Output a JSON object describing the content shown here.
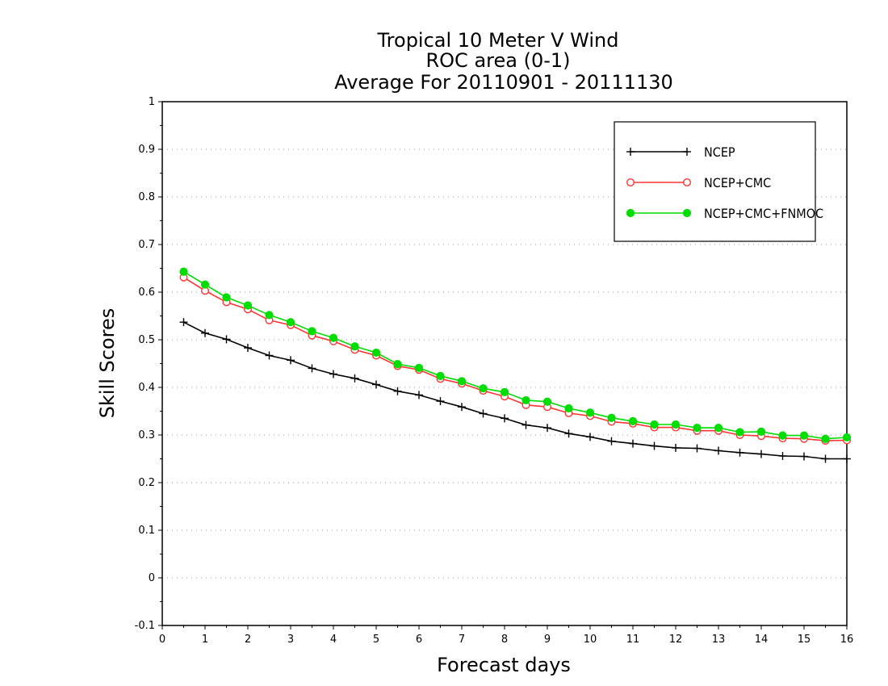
{
  "chart_data": {
    "type": "line",
    "title": [
      "Tropical 10 Meter V Wind",
      "ROC area (0-1)",
      "Average For 20110901 - 20111130"
    ],
    "xlabel": "Forecast days",
    "ylabel": "Skill Scores",
    "xlim": [
      0,
      16
    ],
    "ylim": [
      -0.1,
      1
    ],
    "xticks": [
      0,
      1,
      2,
      3,
      4,
      5,
      6,
      7,
      8,
      9,
      10,
      11,
      12,
      13,
      14,
      15,
      16
    ],
    "yticks": [
      -0.1,
      0,
      0.1,
      0.2,
      0.3,
      0.4,
      0.5,
      0.6,
      0.7,
      0.8,
      0.9,
      1
    ],
    "ytick_labels": [
      "-0.1",
      "0",
      "0.1",
      "0.2",
      "0.3",
      "0.4",
      "0.5",
      "0.6",
      "0.7",
      "0.8",
      "0.9",
      "1"
    ],
    "grid": "y-dotted",
    "legend_position": "top-right",
    "x": [
      0.5,
      1,
      1.5,
      2,
      2.5,
      3,
      3.5,
      4,
      4.5,
      5,
      5.5,
      6,
      6.5,
      7,
      7.5,
      8,
      8.5,
      9,
      9.5,
      10,
      10.5,
      11,
      11.5,
      12,
      12.5,
      13,
      13.5,
      14,
      14.5,
      15,
      15.5,
      16
    ],
    "series": [
      {
        "name": "NCEP",
        "color": "#000000",
        "marker": "plus",
        "values": [
          0.537,
          0.514,
          0.501,
          0.483,
          0.467,
          0.457,
          0.44,
          0.428,
          0.419,
          0.406,
          0.392,
          0.384,
          0.371,
          0.359,
          0.345,
          0.335,
          0.321,
          0.315,
          0.303,
          0.296,
          0.287,
          0.282,
          0.277,
          0.273,
          0.272,
          0.267,
          0.263,
          0.26,
          0.256,
          0.255,
          0.25,
          0.25
        ]
      },
      {
        "name": "NCEP+CMC",
        "color": "#ff3333",
        "marker": "open-circle",
        "values": [
          0.631,
          0.603,
          0.579,
          0.564,
          0.541,
          0.531,
          0.509,
          0.497,
          0.479,
          0.467,
          0.445,
          0.437,
          0.418,
          0.408,
          0.393,
          0.381,
          0.363,
          0.359,
          0.346,
          0.34,
          0.328,
          0.324,
          0.316,
          0.316,
          0.309,
          0.309,
          0.3,
          0.298,
          0.293,
          0.292,
          0.288,
          0.289
        ]
      },
      {
        "name": "NCEP+CMC+FNMOC",
        "color": "#00dd00",
        "marker": "filled-circle",
        "values": [
          0.643,
          0.616,
          0.589,
          0.572,
          0.552,
          0.537,
          0.518,
          0.504,
          0.486,
          0.473,
          0.449,
          0.441,
          0.424,
          0.413,
          0.398,
          0.39,
          0.373,
          0.37,
          0.356,
          0.347,
          0.336,
          0.329,
          0.322,
          0.322,
          0.315,
          0.315,
          0.306,
          0.307,
          0.299,
          0.299,
          0.292,
          0.295
        ]
      }
    ]
  }
}
